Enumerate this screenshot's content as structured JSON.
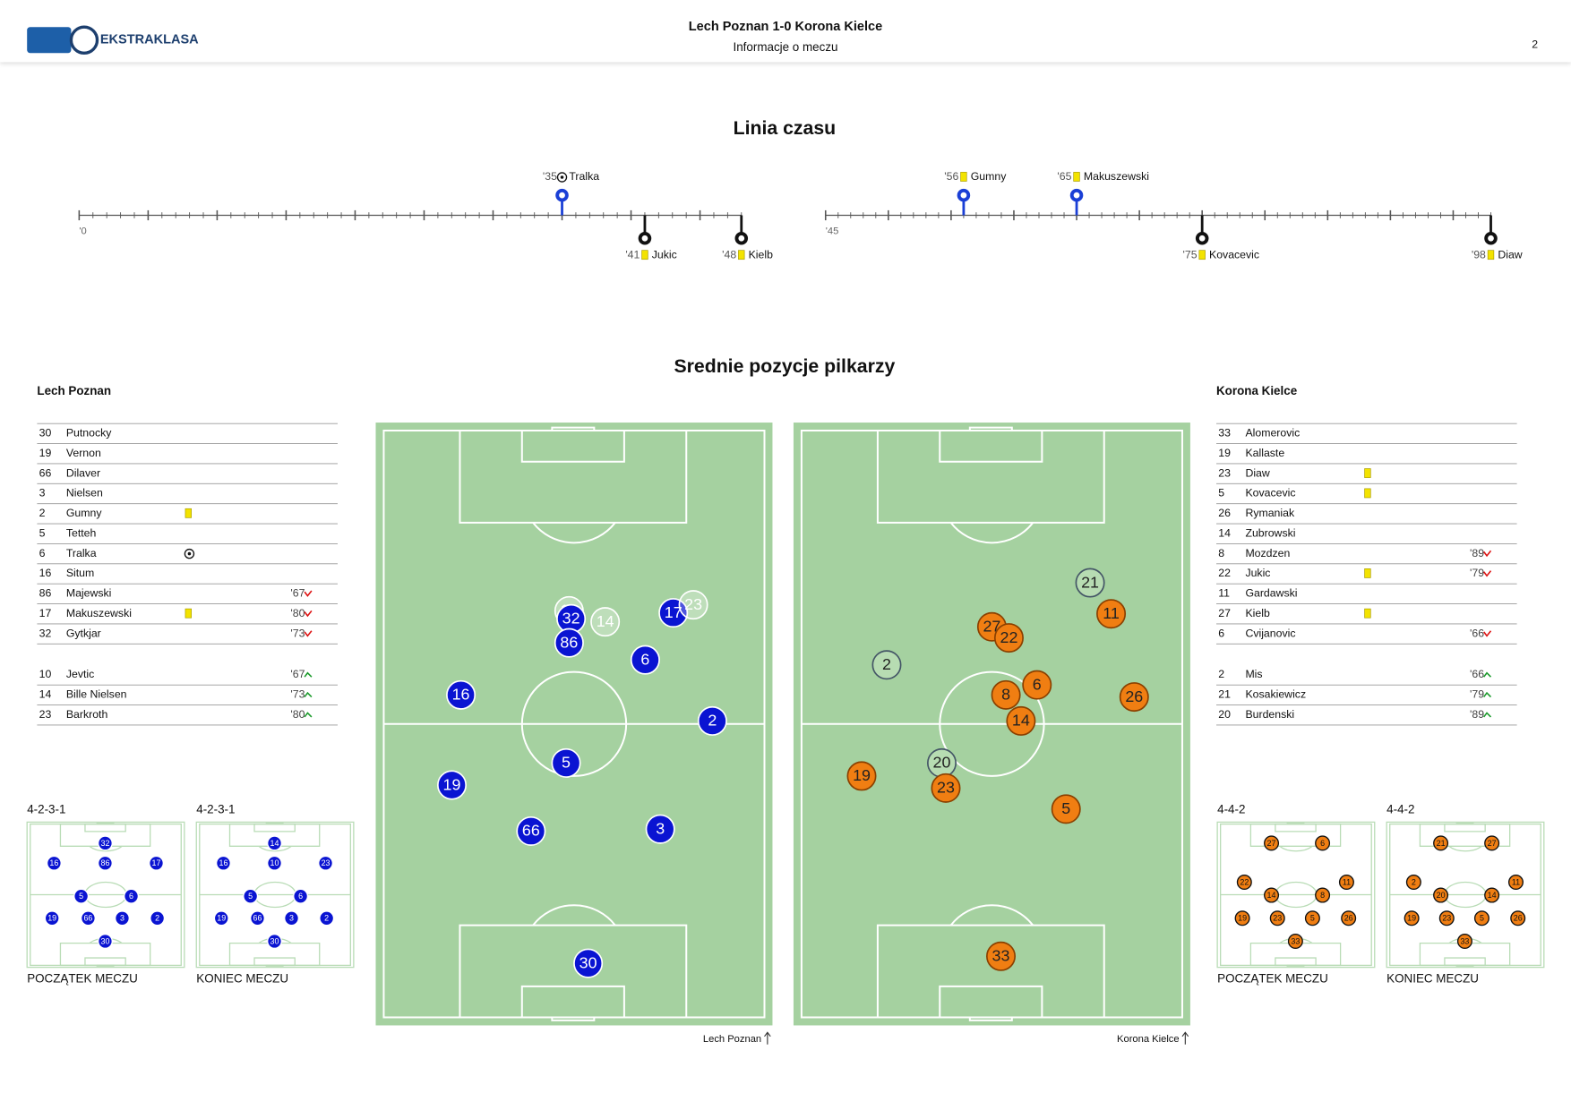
{
  "header": {
    "brand": "EKSTRAKLASA",
    "title": "Lech Poznan 1-0 Korona Kielce",
    "subtitle": "Informacje o meczu",
    "page": "2"
  },
  "timeline": {
    "title": "Linia czasu",
    "major_step": 5,
    "halves": [
      {
        "start_label": "'0",
        "xlim": [
          0,
          48
        ],
        "events": [
          {
            "minute": 35,
            "label": "'35",
            "player": "Tralka",
            "team": "home",
            "kind": "goal"
          },
          {
            "minute": 41,
            "label": "'41",
            "player": "Jukic",
            "team": "away",
            "kind": "yellow"
          },
          {
            "minute": 48,
            "label": "'48",
            "player": "Kielb",
            "team": "away",
            "kind": "yellow"
          }
        ]
      },
      {
        "start_label": "'45",
        "xlim": [
          45,
          98
        ],
        "events": [
          {
            "minute": 56,
            "label": "'56",
            "player": "Gumny",
            "team": "home",
            "kind": "yellow"
          },
          {
            "minute": 65,
            "label": "'65",
            "player": "Makuszewski",
            "team": "home",
            "kind": "yellow"
          },
          {
            "minute": 75,
            "label": "'75",
            "player": "Kovacevic",
            "team": "away",
            "kind": "yellow"
          },
          {
            "minute": 98,
            "label": "'98",
            "player": "Diaw",
            "team": "away",
            "kind": "yellow"
          }
        ]
      }
    ]
  },
  "positions": {
    "title": "Srednie pozycje pilkarzy",
    "teams": [
      {
        "name": "Lech Poznan",
        "side": "home",
        "pitch_caption": "Lech Poznan",
        "lineup": [
          {
            "number": "30",
            "name": "Putnocky"
          },
          {
            "number": "19",
            "name": "Vernon"
          },
          {
            "number": "66",
            "name": "Dilaver"
          },
          {
            "number": "3",
            "name": "Nielsen"
          },
          {
            "number": "2",
            "name": "Gumny",
            "card": "yellow"
          },
          {
            "number": "5",
            "name": "Tetteh"
          },
          {
            "number": "6",
            "name": "Tralka",
            "goal": true
          },
          {
            "number": "16",
            "name": "Situm"
          },
          {
            "number": "86",
            "name": "Majewski",
            "sub": "'67",
            "sub_dir": "off"
          },
          {
            "number": "17",
            "name": "Makuszewski",
            "card": "yellow",
            "sub": "'80",
            "sub_dir": "off"
          },
          {
            "number": "32",
            "name": "Gytkjar",
            "sub": "'73",
            "sub_dir": "off"
          }
        ],
        "subs": [
          {
            "number": "10",
            "name": "Jevtic",
            "sub": "'67",
            "sub_dir": "on"
          },
          {
            "number": "14",
            "name": "Bille Nielsen",
            "sub": "'73",
            "sub_dir": "on"
          },
          {
            "number": "23",
            "name": "Barkroth",
            "sub": "'80",
            "sub_dir": "on"
          }
        ],
        "pitch": [
          {
            "number": "10",
            "sub": true
          },
          {
            "number": "32"
          },
          {
            "number": "14",
            "sub": true
          },
          {
            "number": "17"
          },
          {
            "number": "23",
            "sub": true
          },
          {
            "number": "86"
          },
          {
            "number": "6"
          },
          {
            "number": "16"
          },
          {
            "number": "2"
          },
          {
            "number": "5"
          },
          {
            "number": "19"
          },
          {
            "number": "66"
          },
          {
            "number": "3"
          },
          {
            "number": "30"
          }
        ],
        "formations": [
          {
            "label": "4-2-3-1",
            "caption": "POCZĄTEK MECZU",
            "players": [
              "32",
              "16",
              "86",
              "17",
              "5",
              "6",
              "19",
              "66",
              "3",
              "2",
              "30"
            ]
          },
          {
            "label": "4-2-3-1",
            "caption": "KONIEC MECZU",
            "players": [
              "14",
              "16",
              "10",
              "23",
              "5",
              "6",
              "19",
              "66",
              "3",
              "2",
              "30"
            ]
          }
        ]
      },
      {
        "name": "Korona Kielce",
        "side": "away",
        "pitch_caption": "Korona Kielce",
        "lineup": [
          {
            "number": "33",
            "name": "Alomerovic"
          },
          {
            "number": "19",
            "name": "Kallaste"
          },
          {
            "number": "23",
            "name": "Diaw",
            "card": "yellow"
          },
          {
            "number": "5",
            "name": "Kovacevic",
            "card": "yellow"
          },
          {
            "number": "26",
            "name": "Rymaniak"
          },
          {
            "number": "14",
            "name": "Zubrowski"
          },
          {
            "number": "8",
            "name": "Mozdzen",
            "sub": "'89",
            "sub_dir": "off"
          },
          {
            "number": "22",
            "name": "Jukic",
            "card": "yellow",
            "sub": "'79",
            "sub_dir": "off"
          },
          {
            "number": "11",
            "name": "Gardawski"
          },
          {
            "number": "27",
            "name": "Kielb",
            "card": "yellow"
          },
          {
            "number": "6",
            "name": "Cvijanovic",
            "sub": "'66",
            "sub_dir": "off"
          }
        ],
        "subs": [
          {
            "number": "2",
            "name": "Mis",
            "sub": "'66",
            "sub_dir": "on"
          },
          {
            "number": "21",
            "name": "Kosakiewicz",
            "sub": "'79",
            "sub_dir": "on"
          },
          {
            "number": "20",
            "name": "Burdenski",
            "sub": "'89",
            "sub_dir": "on"
          }
        ],
        "pitch": [
          {
            "number": "21",
            "sub": true
          },
          {
            "number": "11"
          },
          {
            "number": "27"
          },
          {
            "number": "22"
          },
          {
            "number": "2",
            "sub": true
          },
          {
            "number": "6"
          },
          {
            "number": "8"
          },
          {
            "number": "26"
          },
          {
            "number": "14"
          },
          {
            "number": "20",
            "sub": true
          },
          {
            "number": "19"
          },
          {
            "number": "23"
          },
          {
            "number": "5"
          },
          {
            "number": "33"
          }
        ],
        "formations": [
          {
            "label": "4-4-2",
            "caption": "POCZĄTEK MECZU",
            "players": [
              "27",
              "6",
              "22",
              "14",
              "8",
              "11",
              "19",
              "23",
              "5",
              "26",
              "33"
            ]
          },
          {
            "label": "4-4-2",
            "caption": "KONIEC MECZU",
            "players": [
              "21",
              "27",
              "2",
              "20",
              "14",
              "11",
              "19",
              "23",
              "5",
              "26",
              "33"
            ]
          }
        ]
      }
    ]
  }
}
